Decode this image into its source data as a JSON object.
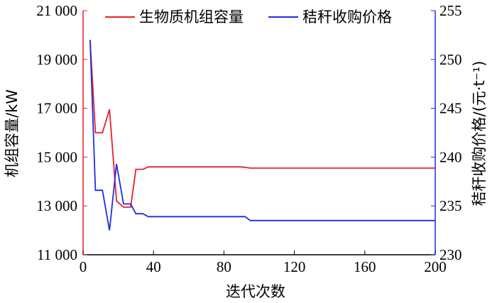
{
  "chart_data": {
    "type": "line",
    "title": "",
    "xlabel": "迭代次数",
    "ylabel_left": "机组容量/kW",
    "ylabel_right": "秸秆收购价格/(元·t⁻¹)",
    "xlim": [
      0,
      200
    ],
    "ylim_left": [
      11000,
      21000
    ],
    "ylim_right": [
      230,
      255
    ],
    "xticks": [
      0,
      40,
      80,
      120,
      160,
      200
    ],
    "xtick_labels": [
      "0",
      "40",
      "80",
      "120",
      "160",
      "200"
    ],
    "yticks_left": [
      11000,
      13000,
      15000,
      17000,
      19000,
      21000
    ],
    "ytick_labels_left": [
      "11 000",
      "13 000",
      "15 000",
      "17 000",
      "19 000",
      "21 000"
    ],
    "yticks_right": [
      230,
      235,
      240,
      245,
      250,
      255
    ],
    "ytick_labels_right": [
      "230",
      "235",
      "240",
      "245",
      "250",
      "255"
    ],
    "grid": false,
    "legend_position": "top",
    "series": [
      {
        "name": "生物质机组容量",
        "axis": "left",
        "color": "#e8202a",
        "x": [
          4,
          7,
          11,
          15,
          19,
          23,
          27,
          30,
          34,
          37,
          60,
          90,
          95,
          120,
          160,
          200
        ],
        "y": [
          19800,
          16000,
          16000,
          16950,
          13200,
          12950,
          12950,
          14500,
          14500,
          14600,
          14600,
          14600,
          14550,
          14550,
          14550,
          14550
        ]
      },
      {
        "name": "秸秆收购价格",
        "axis": "right",
        "color": "#1c2fe0",
        "x": [
          4,
          7,
          11,
          15,
          19,
          23,
          27,
          30,
          34,
          37,
          60,
          92,
          95,
          120,
          160,
          200
        ],
        "y": [
          252,
          236.6,
          236.6,
          232.5,
          239.3,
          235.2,
          235.2,
          234.2,
          234.2,
          233.9,
          233.9,
          233.9,
          233.5,
          233.5,
          233.5,
          233.5
        ]
      }
    ]
  }
}
